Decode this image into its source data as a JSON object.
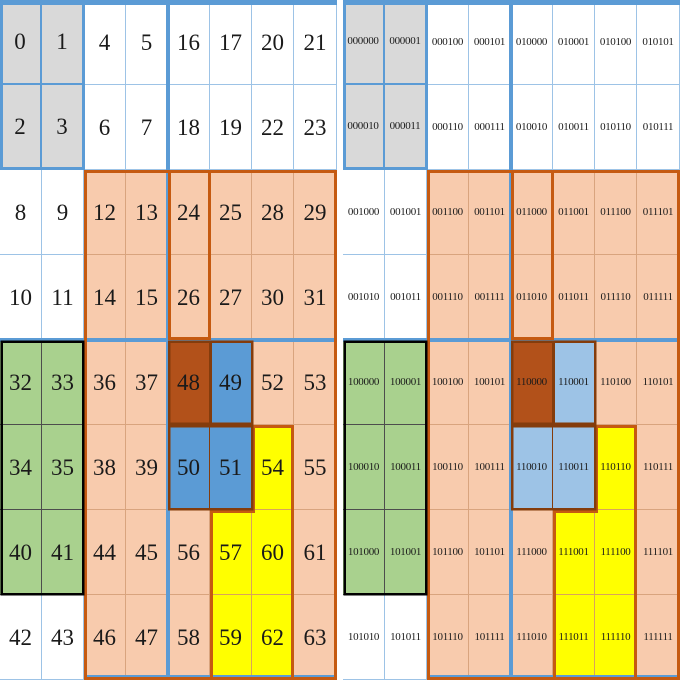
{
  "colors": {
    "fill_gray": "#D9D9D9",
    "fill_peach": "#F8CBAD",
    "fill_green": "#A9D18E",
    "fill_brown": "#B2511A",
    "fill_blue_decimal": "#5B9BD5",
    "fill_blue_binary": "#9DC3E6",
    "fill_yellow": "#FFFF00",
    "border_blue": "#5B9BD5",
    "border_orange": "#C55A11",
    "border_dark_orange": "#843C0C",
    "border_black": "#000000",
    "line_white_region": "#9DC3E6",
    "line_gray_region": "#5B9BD5",
    "line_peach_region": "#D9A47E",
    "line_green_region": "#4D4D4D",
    "line_yellow_region": "#D9A35B"
  },
  "grids": [
    {
      "id": "decimal",
      "rows": [
        [
          "0",
          "1",
          "4",
          "5",
          "16",
          "17",
          "20",
          "21"
        ],
        [
          "2",
          "3",
          "6",
          "7",
          "18",
          "19",
          "22",
          "23"
        ],
        [
          "8",
          "9",
          "12",
          "13",
          "24",
          "25",
          "28",
          "29"
        ],
        [
          "10",
          "11",
          "14",
          "15",
          "26",
          "27",
          "30",
          "31"
        ],
        [
          "32",
          "33",
          "36",
          "37",
          "48",
          "49",
          "52",
          "53"
        ],
        [
          "34",
          "35",
          "38",
          "39",
          "50",
          "51",
          "54",
          "55"
        ],
        [
          "40",
          "41",
          "44",
          "45",
          "56",
          "57",
          "60",
          "61"
        ],
        [
          "42",
          "43",
          "46",
          "47",
          "58",
          "59",
          "62",
          "63"
        ]
      ]
    },
    {
      "id": "binary",
      "rows": [
        [
          "000000",
          "000001",
          "000100",
          "000101",
          "010000",
          "010001",
          "010100",
          "010101"
        ],
        [
          "000010",
          "000011",
          "000110",
          "000111",
          "010010",
          "010011",
          "010110",
          "010111"
        ],
        [
          "001000",
          "001001",
          "001100",
          "001101",
          "011000",
          "011001",
          "011100",
          "011101"
        ],
        [
          "001010",
          "001011",
          "001110",
          "001111",
          "011010",
          "011011",
          "011110",
          "011111"
        ],
        [
          "100000",
          "100001",
          "100100",
          "100101",
          "110000",
          "110001",
          "110100",
          "110101"
        ],
        [
          "100010",
          "100011",
          "100110",
          "100111",
          "110010",
          "110011",
          "110110",
          "110111"
        ],
        [
          "101000",
          "101001",
          "101100",
          "101101",
          "111000",
          "111001",
          "111100",
          "111101"
        ],
        [
          "101010",
          "101011",
          "101110",
          "101111",
          "111010",
          "111011",
          "111110",
          "111111"
        ]
      ]
    }
  ],
  "color_map": [
    [
      "gray",
      "gray",
      "white",
      "white",
      "white",
      "white",
      "white",
      "white"
    ],
    [
      "gray",
      "gray",
      "white",
      "white",
      "white",
      "white",
      "white",
      "white"
    ],
    [
      "white",
      "white",
      "peach",
      "peach",
      "peach",
      "peach",
      "peach",
      "peach"
    ],
    [
      "white",
      "white",
      "peach",
      "peach",
      "peach",
      "peach",
      "peach",
      "peach"
    ],
    [
      "green",
      "green",
      "peach",
      "peach",
      "brown",
      "blue",
      "peach",
      "peach"
    ],
    [
      "green",
      "green",
      "peach",
      "peach",
      "blue",
      "blue",
      "yellow",
      "peach"
    ],
    [
      "green",
      "green",
      "peach",
      "peach",
      "peach",
      "yellow",
      "yellow",
      "peach"
    ],
    [
      "white",
      "white",
      "peach",
      "peach",
      "peach",
      "yellow",
      "yellow",
      "peach"
    ]
  ]
}
